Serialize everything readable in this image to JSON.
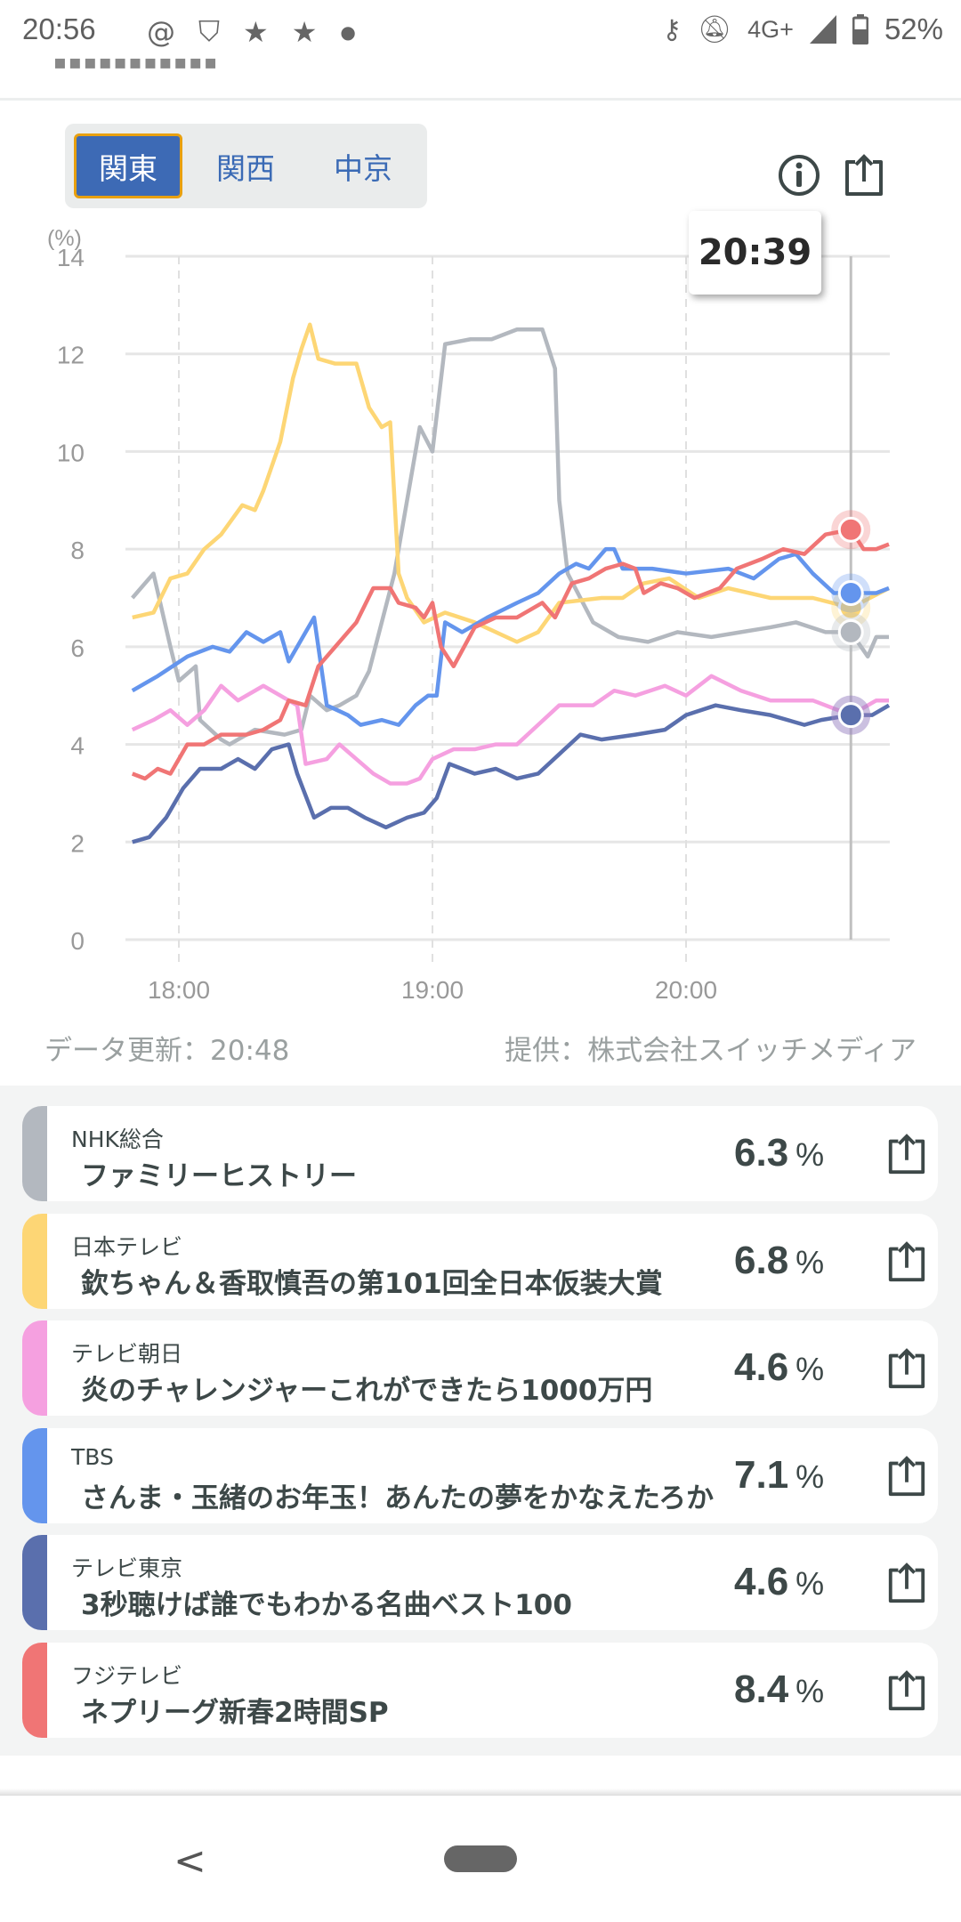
{
  "status_bar": {
    "time": "20:56",
    "network": "4G+",
    "battery": "52%",
    "left_icons": [
      "threads-icon",
      "shield-check-icon",
      "star-icon",
      "star-icon",
      "dot-icon"
    ],
    "right_icons": [
      "vpn-key-icon",
      "bell-off-icon",
      "signal-icon",
      "battery-icon"
    ]
  },
  "region_tabs": [
    {
      "label": "関東",
      "active": true
    },
    {
      "label": "関西",
      "active": false
    },
    {
      "label": "中京",
      "active": false
    }
  ],
  "tooltip_time": "20:39",
  "footer": {
    "updated": "データ更新：20:48",
    "provider": "提供：株式会社スイッチメディア"
  },
  "chart_data": {
    "type": "line",
    "ylabel": "(%)",
    "ylim": [
      0,
      14
    ],
    "yticks": [
      "0",
      "2",
      "4",
      "6",
      "8",
      "10",
      "12",
      "14"
    ],
    "xticks": [
      "18:00",
      "19:00",
      "20:00"
    ],
    "xrange": [
      "17:49",
      "20:48"
    ],
    "cursor": "20:39",
    "grid": true,
    "series": [
      {
        "name": "NHK総合",
        "color": "#b3b8bf",
        "cursor_value": 6.3,
        "points": [
          [
            "17:49",
            7.0
          ],
          [
            "17:54",
            7.5
          ],
          [
            "17:58",
            6.0
          ],
          [
            "18:00",
            5.3
          ],
          [
            "18:04",
            5.6
          ],
          [
            "18:05",
            4.5
          ],
          [
            "18:10",
            4.1
          ],
          [
            "18:12",
            4.0
          ],
          [
            "18:18",
            4.3
          ],
          [
            "18:25",
            4.2
          ],
          [
            "18:29",
            4.3
          ],
          [
            "18:31",
            5.0
          ],
          [
            "18:35",
            4.7
          ],
          [
            "18:38",
            4.8
          ],
          [
            "18:42",
            5.0
          ],
          [
            "18:45",
            5.5
          ],
          [
            "18:51",
            7.5
          ],
          [
            "18:57",
            10.5
          ],
          [
            "19:00",
            10.0
          ],
          [
            "19:03",
            12.2
          ],
          [
            "19:09",
            12.3
          ],
          [
            "19:14",
            12.3
          ],
          [
            "19:20",
            12.5
          ],
          [
            "19:26",
            12.5
          ],
          [
            "19:29",
            11.7
          ],
          [
            "19:30",
            9.0
          ],
          [
            "19:32",
            7.5
          ],
          [
            "19:38",
            6.5
          ],
          [
            "19:44",
            6.2
          ],
          [
            "19:51",
            6.1
          ],
          [
            "19:58",
            6.3
          ],
          [
            "20:06",
            6.2
          ],
          [
            "20:13",
            6.3
          ],
          [
            "20:20",
            6.4
          ],
          [
            "20:26",
            6.5
          ],
          [
            "20:33",
            6.3
          ],
          [
            "20:39",
            6.3
          ],
          [
            "20:43",
            5.8
          ],
          [
            "20:45",
            6.2
          ],
          [
            "20:48",
            6.2
          ]
        ]
      },
      {
        "name": "日本テレビ",
        "color": "#fdd675",
        "cursor_value": 6.8,
        "points": [
          [
            "17:49",
            6.6
          ],
          [
            "17:54",
            6.7
          ],
          [
            "17:58",
            7.4
          ],
          [
            "18:02",
            7.5
          ],
          [
            "18:06",
            8.0
          ],
          [
            "18:10",
            8.3
          ],
          [
            "18:15",
            8.9
          ],
          [
            "18:18",
            8.8
          ],
          [
            "18:20",
            9.2
          ],
          [
            "18:24",
            10.2
          ],
          [
            "18:27",
            11.5
          ],
          [
            "18:29",
            12.1
          ],
          [
            "18:31",
            12.6
          ],
          [
            "18:33",
            11.9
          ],
          [
            "18:37",
            11.8
          ],
          [
            "18:42",
            11.8
          ],
          [
            "18:45",
            10.9
          ],
          [
            "18:48",
            10.5
          ],
          [
            "18:50",
            10.6
          ],
          [
            "18:52",
            7.5
          ],
          [
            "18:54",
            7.0
          ],
          [
            "18:58",
            6.5
          ],
          [
            "19:03",
            6.7
          ],
          [
            "19:10",
            6.5
          ],
          [
            "19:20",
            6.1
          ],
          [
            "19:25",
            6.3
          ],
          [
            "19:30",
            6.9
          ],
          [
            "19:40",
            7.0
          ],
          [
            "19:45",
            7.0
          ],
          [
            "19:50",
            7.3
          ],
          [
            "19:56",
            7.4
          ],
          [
            "20:03",
            7.0
          ],
          [
            "20:10",
            7.2
          ],
          [
            "20:20",
            7.0
          ],
          [
            "20:30",
            7.0
          ],
          [
            "20:39",
            6.8
          ],
          [
            "20:48",
            7.2
          ]
        ]
      },
      {
        "name": "テレビ朝日",
        "color": "#f5a0e0",
        "cursor_value": 4.6,
        "points": [
          [
            "17:49",
            4.3
          ],
          [
            "17:54",
            4.5
          ],
          [
            "17:58",
            4.7
          ],
          [
            "18:02",
            4.4
          ],
          [
            "18:06",
            4.7
          ],
          [
            "18:10",
            5.2
          ],
          [
            "18:14",
            4.9
          ],
          [
            "18:20",
            5.2
          ],
          [
            "18:24",
            5.0
          ],
          [
            "18:28",
            4.8
          ],
          [
            "18:30",
            3.6
          ],
          [
            "18:35",
            3.7
          ],
          [
            "18:38",
            4.0
          ],
          [
            "18:42",
            3.7
          ],
          [
            "18:46",
            3.4
          ],
          [
            "18:50",
            3.2
          ],
          [
            "18:54",
            3.2
          ],
          [
            "18:57",
            3.3
          ],
          [
            "19:00",
            3.7
          ],
          [
            "19:05",
            3.9
          ],
          [
            "19:10",
            3.9
          ],
          [
            "19:15",
            4.0
          ],
          [
            "19:20",
            4.0
          ],
          [
            "19:25",
            4.4
          ],
          [
            "19:30",
            4.8
          ],
          [
            "19:38",
            4.8
          ],
          [
            "19:43",
            5.1
          ],
          [
            "19:48",
            5.0
          ],
          [
            "19:55",
            5.2
          ],
          [
            "20:00",
            5.0
          ],
          [
            "20:06",
            5.4
          ],
          [
            "20:13",
            5.1
          ],
          [
            "20:20",
            4.9
          ],
          [
            "20:30",
            4.9
          ],
          [
            "20:39",
            4.6
          ],
          [
            "20:45",
            4.9
          ],
          [
            "20:48",
            4.9
          ]
        ]
      },
      {
        "name": "TBS",
        "color": "#6495ed",
        "cursor_value": 7.1,
        "points": [
          [
            "17:49",
            5.1
          ],
          [
            "17:55",
            5.4
          ],
          [
            "18:02",
            5.8
          ],
          [
            "18:08",
            6.0
          ],
          [
            "18:12",
            5.9
          ],
          [
            "18:16",
            6.3
          ],
          [
            "18:20",
            6.1
          ],
          [
            "18:24",
            6.3
          ],
          [
            "18:26",
            5.7
          ],
          [
            "18:30",
            6.3
          ],
          [
            "18:32",
            6.6
          ],
          [
            "18:35",
            4.8
          ],
          [
            "18:40",
            4.6
          ],
          [
            "18:43",
            4.4
          ],
          [
            "18:48",
            4.5
          ],
          [
            "18:52",
            4.4
          ],
          [
            "18:56",
            4.8
          ],
          [
            "18:59",
            5.0
          ],
          [
            "19:01",
            5.0
          ],
          [
            "19:03",
            6.5
          ],
          [
            "19:07",
            6.3
          ],
          [
            "19:13",
            6.6
          ],
          [
            "19:20",
            6.9
          ],
          [
            "19:25",
            7.1
          ],
          [
            "19:30",
            7.5
          ],
          [
            "19:34",
            7.7
          ],
          [
            "19:37",
            7.6
          ],
          [
            "19:41",
            8.0
          ],
          [
            "19:43",
            8.0
          ],
          [
            "19:45",
            7.6
          ],
          [
            "19:52",
            7.6
          ],
          [
            "20:00",
            7.5
          ],
          [
            "20:10",
            7.6
          ],
          [
            "20:16",
            7.4
          ],
          [
            "20:22",
            7.8
          ],
          [
            "20:26",
            7.9
          ],
          [
            "20:30",
            7.5
          ],
          [
            "20:35",
            7.1
          ],
          [
            "20:39",
            7.1
          ],
          [
            "20:45",
            7.1
          ],
          [
            "20:48",
            7.2
          ]
        ]
      },
      {
        "name": "テレビ東京",
        "color": "#5a6fad",
        "cursor_value": 4.6,
        "points": [
          [
            "17:49",
            2.0
          ],
          [
            "17:53",
            2.1
          ],
          [
            "17:57",
            2.5
          ],
          [
            "18:01",
            3.1
          ],
          [
            "18:05",
            3.5
          ],
          [
            "18:10",
            3.5
          ],
          [
            "18:14",
            3.7
          ],
          [
            "18:18",
            3.5
          ],
          [
            "18:22",
            3.9
          ],
          [
            "18:26",
            4.0
          ],
          [
            "18:28",
            3.4
          ],
          [
            "18:32",
            2.5
          ],
          [
            "18:36",
            2.7
          ],
          [
            "18:40",
            2.7
          ],
          [
            "18:44",
            2.5
          ],
          [
            "18:49",
            2.3
          ],
          [
            "18:54",
            2.5
          ],
          [
            "18:58",
            2.6
          ],
          [
            "19:01",
            2.9
          ],
          [
            "19:04",
            3.6
          ],
          [
            "19:10",
            3.4
          ],
          [
            "19:15",
            3.5
          ],
          [
            "19:20",
            3.3
          ],
          [
            "19:25",
            3.4
          ],
          [
            "19:30",
            3.8
          ],
          [
            "19:35",
            4.2
          ],
          [
            "19:40",
            4.1
          ],
          [
            "19:48",
            4.2
          ],
          [
            "19:55",
            4.3
          ],
          [
            "20:00",
            4.6
          ],
          [
            "20:07",
            4.8
          ],
          [
            "20:13",
            4.7
          ],
          [
            "20:20",
            4.6
          ],
          [
            "20:28",
            4.4
          ],
          [
            "20:32",
            4.5
          ],
          [
            "20:39",
            4.6
          ],
          [
            "20:44",
            4.6
          ],
          [
            "20:48",
            4.8
          ]
        ]
      },
      {
        "name": "フジテレビ",
        "color": "#f07575",
        "cursor_value": 8.4,
        "points": [
          [
            "17:49",
            3.4
          ],
          [
            "17:52",
            3.3
          ],
          [
            "17:55",
            3.5
          ],
          [
            "17:58",
            3.4
          ],
          [
            "18:02",
            4.0
          ],
          [
            "18:06",
            4.0
          ],
          [
            "18:10",
            4.2
          ],
          [
            "18:16",
            4.2
          ],
          [
            "18:20",
            4.3
          ],
          [
            "18:24",
            4.5
          ],
          [
            "18:26",
            4.9
          ],
          [
            "18:30",
            4.8
          ],
          [
            "18:33",
            5.6
          ],
          [
            "18:37",
            6.0
          ],
          [
            "18:42",
            6.5
          ],
          [
            "18:46",
            7.2
          ],
          [
            "18:50",
            7.2
          ],
          [
            "18:52",
            6.9
          ],
          [
            "18:56",
            6.8
          ],
          [
            "18:58",
            6.6
          ],
          [
            "19:00",
            6.9
          ],
          [
            "19:02",
            6.0
          ],
          [
            "19:05",
            5.6
          ],
          [
            "19:10",
            6.4
          ],
          [
            "19:15",
            6.6
          ],
          [
            "19:20",
            6.6
          ],
          [
            "19:26",
            6.9
          ],
          [
            "19:29",
            6.6
          ],
          [
            "19:33",
            7.3
          ],
          [
            "19:37",
            7.4
          ],
          [
            "19:41",
            7.6
          ],
          [
            "19:45",
            7.7
          ],
          [
            "19:48",
            7.6
          ],
          [
            "19:50",
            7.1
          ],
          [
            "19:54",
            7.3
          ],
          [
            "19:58",
            7.2
          ],
          [
            "20:02",
            7.0
          ],
          [
            "20:08",
            7.2
          ],
          [
            "20:12",
            7.6
          ],
          [
            "20:18",
            7.8
          ],
          [
            "20:23",
            8.0
          ],
          [
            "20:28",
            7.9
          ],
          [
            "20:33",
            8.3
          ],
          [
            "20:39",
            8.4
          ],
          [
            "20:42",
            8.0
          ],
          [
            "20:45",
            8.0
          ],
          [
            "20:48",
            8.1
          ]
        ]
      }
    ]
  },
  "programs": [
    {
      "channel": "NHK総合",
      "title": "ファミリーヒストリー",
      "value": "6.3",
      "unit": "%",
      "color": "#b3b8bf"
    },
    {
      "channel": "日本テレビ",
      "title": "欽ちゃん＆香取慎吾の第101回全日本仮装大賞",
      "value": "6.8",
      "unit": "%",
      "color": "#fdd675"
    },
    {
      "channel": "テレビ朝日",
      "title": "炎のチャレンジャーこれができたら1000万円",
      "value": "4.6",
      "unit": "%",
      "color": "#f5a0e0"
    },
    {
      "channel": "TBS",
      "title": "さんま・玉緒のお年玉！あんたの夢をかなえたろか",
      "value": "7.1",
      "unit": "%",
      "color": "#6495ed"
    },
    {
      "channel": "テレビ東京",
      "title": "3秒聴けば誰でもわかる名曲ベスト100",
      "value": "4.6",
      "unit": "%",
      "color": "#5a6fad"
    },
    {
      "channel": "フジテレビ",
      "title": "ネプリーグ新春2時間SP",
      "value": "8.4",
      "unit": "%",
      "color": "#f07575"
    }
  ]
}
